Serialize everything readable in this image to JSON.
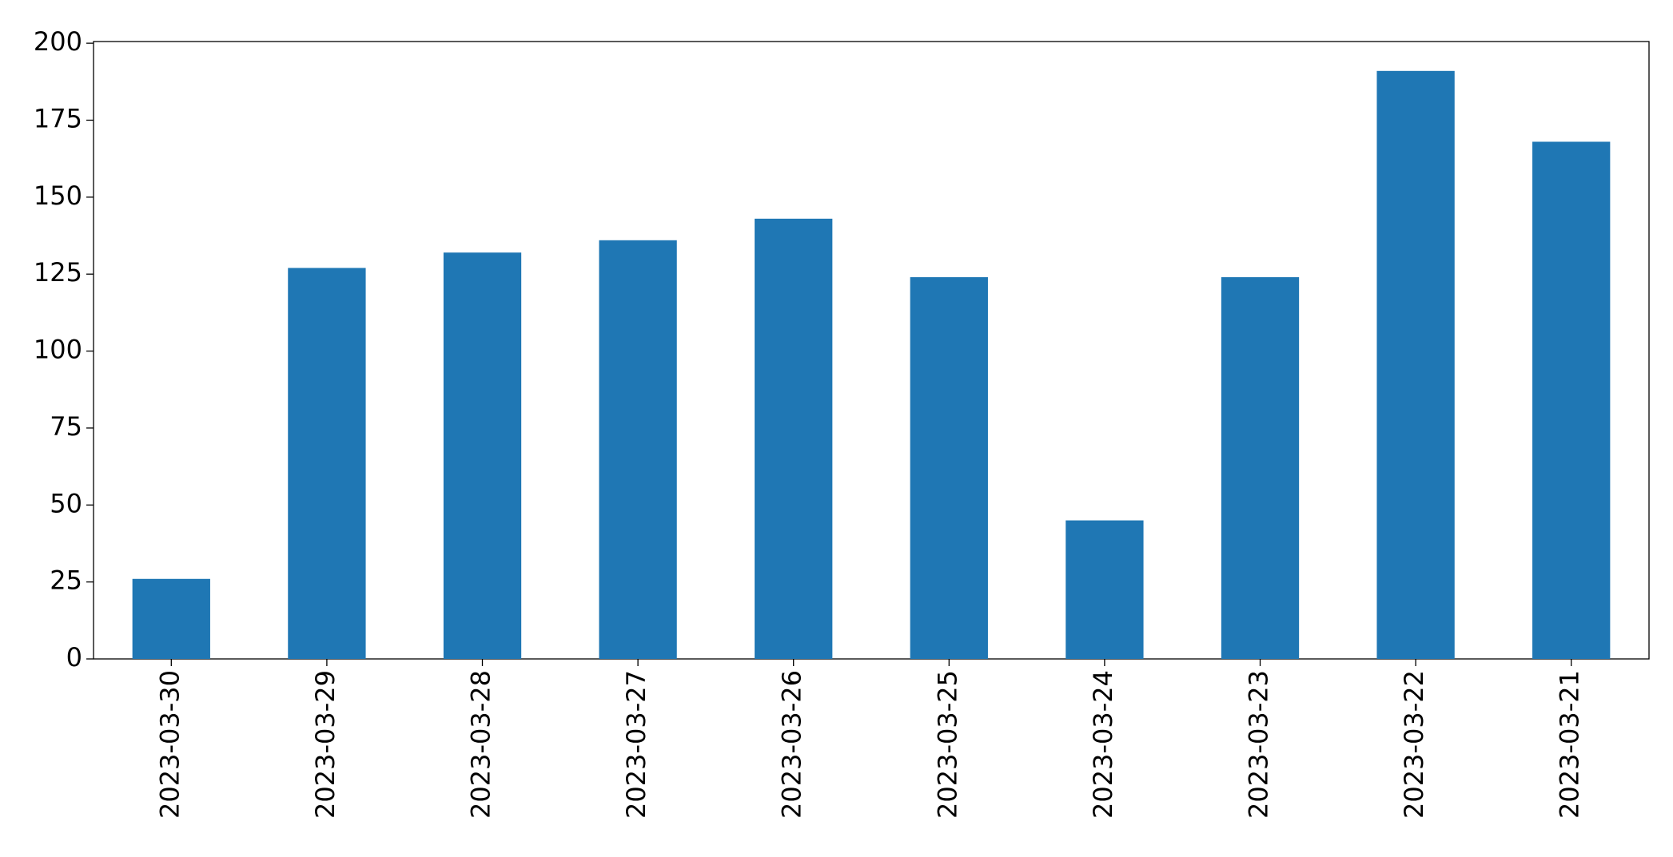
{
  "chart_data": {
    "type": "bar",
    "categories": [
      "2023-03-30",
      "2023-03-29",
      "2023-03-28",
      "2023-03-27",
      "2023-03-26",
      "2023-03-25",
      "2023-03-24",
      "2023-03-23",
      "2023-03-22",
      "2023-03-21"
    ],
    "values": [
      26,
      127,
      132,
      136,
      143,
      124,
      45,
      124,
      191,
      168
    ],
    "color": "#1f77b4",
    "ylim": [
      0,
      200.55
    ],
    "yticks": [
      0,
      25,
      50,
      75,
      100,
      125,
      150,
      175,
      200
    ],
    "grid": false
  }
}
